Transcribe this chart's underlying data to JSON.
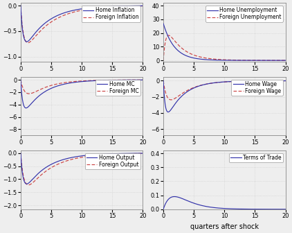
{
  "home_color": "#3333AA",
  "foreign_color": "#CC4444",
  "bg_color": "#EEEEEE",
  "grid_color": "#CCCCCC",
  "linewidth": 0.85,
  "tick_fontsize": 6,
  "legend_fontsize": 5.5,
  "xlabel": "quarters after shock",
  "xlabel_fontsize": 7,
  "subplots": [
    {
      "legend": [
        "Home Inflation",
        "Foreign Inflation"
      ],
      "ylim": [
        -1.1,
        0.05
      ],
      "yticks": [
        -1.0,
        -0.5,
        0.0
      ],
      "xlim": [
        0,
        20
      ],
      "xticks": [
        0,
        5,
        10,
        15,
        20
      ]
    },
    {
      "legend": [
        "Home Unemployment",
        "Foreign Unemployment"
      ],
      "ylim": [
        -1,
        42
      ],
      "yticks": [
        0,
        10,
        20,
        30,
        40
      ],
      "xlim": [
        0,
        20
      ],
      "xticks": [
        0,
        5,
        10,
        15,
        20
      ]
    },
    {
      "legend": [
        "Home MC",
        "Foreign MC"
      ],
      "ylim": [
        -9,
        0.5
      ],
      "yticks": [
        -8,
        -6,
        -4,
        -2,
        0
      ],
      "xlim": [
        0,
        20
      ],
      "xticks": [
        0,
        5,
        10,
        15,
        20
      ]
    },
    {
      "legend": [
        "Home Wage",
        "Foreign Wage"
      ],
      "ylim": [
        -6.8,
        0.5
      ],
      "yticks": [
        -6,
        -4,
        -2,
        0
      ],
      "xlim": [
        0,
        20
      ],
      "xticks": [
        0,
        5,
        10,
        15,
        20
      ]
    },
    {
      "legend": [
        "Home Output",
        "Foreign Output"
      ],
      "ylim": [
        -2.15,
        0.1
      ],
      "yticks": [
        -2.0,
        -1.5,
        -1.0,
        -0.5,
        0.0
      ],
      "xlim": [
        0,
        20
      ],
      "xticks": [
        0,
        5,
        10,
        15,
        20
      ]
    },
    {
      "legend": [
        "Terms of Trade"
      ],
      "ylim": [
        0,
        0.42
      ],
      "yticks": [
        0.0,
        0.1,
        0.2,
        0.3,
        0.4
      ],
      "xlim": [
        0,
        20
      ],
      "xticks": [
        0,
        5,
        10,
        15,
        20
      ]
    }
  ]
}
